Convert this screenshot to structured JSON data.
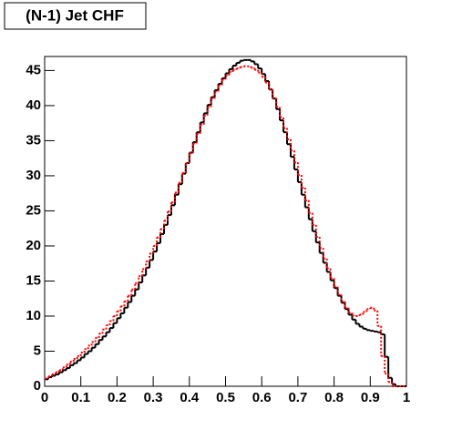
{
  "chart_data": {
    "type": "histogram",
    "title": "(N-1) Jet CHF",
    "bins": [
      0,
      0.01,
      0.02,
      0.03,
      0.04,
      0.05,
      0.06,
      0.07,
      0.08,
      0.09,
      0.1,
      0.11,
      0.12,
      0.13,
      0.14,
      0.15,
      0.16,
      0.17,
      0.18,
      0.19,
      0.2,
      0.21,
      0.22,
      0.23,
      0.24,
      0.25,
      0.26,
      0.27,
      0.28,
      0.29,
      0.3,
      0.31,
      0.32,
      0.33,
      0.34,
      0.35,
      0.36,
      0.37,
      0.38,
      0.39,
      0.4,
      0.41,
      0.42,
      0.43,
      0.44,
      0.45,
      0.46,
      0.47,
      0.48,
      0.49,
      0.5,
      0.51,
      0.52,
      0.53,
      0.54,
      0.55,
      0.56,
      0.57,
      0.58,
      0.59,
      0.6,
      0.61,
      0.62,
      0.63,
      0.64,
      0.65,
      0.66,
      0.67,
      0.68,
      0.69,
      0.7,
      0.71,
      0.72,
      0.73,
      0.74,
      0.75,
      0.76,
      0.77,
      0.78,
      0.79,
      0.8,
      0.81,
      0.82,
      0.83,
      0.84,
      0.85,
      0.86,
      0.87,
      0.88,
      0.89,
      0.9,
      0.91,
      0.92,
      0.93,
      0.94,
      0.95,
      0.96,
      0.97,
      0.98,
      0.99,
      1
    ],
    "series": [
      {
        "color": "#000000",
        "dash": "none",
        "values": [
          1.0,
          1.3,
          1.5,
          1.7,
          2.0,
          2.3,
          2.6,
          3.0,
          3.3,
          3.7,
          4.1,
          4.6,
          5.0,
          5.5,
          6.0,
          6.6,
          7.1,
          7.7,
          8.3,
          9.0,
          9.7,
          10.4,
          11.2,
          12.0,
          12.9,
          13.8,
          14.8,
          15.8,
          16.9,
          18.0,
          19.2,
          20.4,
          21.7,
          23.0,
          24.4,
          25.8,
          27.3,
          28.8,
          30.3,
          31.8,
          33.3,
          34.8,
          36.2,
          37.6,
          38.9,
          40.1,
          41.2,
          42.2,
          43.1,
          43.9,
          44.6,
          45.2,
          45.7,
          46.1,
          46.4,
          46.5,
          46.5,
          46.3,
          45.9,
          45.3,
          44.5,
          43.5,
          42.3,
          41.0,
          39.5,
          37.9,
          36.2,
          34.5,
          32.7,
          30.9,
          29.1,
          27.3,
          25.5,
          23.8,
          22.1,
          20.5,
          19.0,
          17.6,
          16.3,
          15.1,
          14.0,
          12.9,
          11.9,
          11.0,
          10.2,
          9.5,
          8.9,
          8.5,
          8.2,
          8.0,
          7.9,
          7.8,
          7.7,
          7.4,
          4.2,
          1.2,
          0.3,
          0,
          0,
          0
        ]
      },
      {
        "color": "#ff0000",
        "dash": "2 2",
        "values": [
          1.1,
          1.4,
          1.7,
          2.0,
          2.3,
          2.7,
          3.1,
          3.5,
          3.9,
          4.3,
          4.8,
          5.3,
          5.8,
          6.3,
          6.9,
          7.5,
          8.1,
          8.7,
          9.3,
          10.0,
          10.7,
          11.4,
          12.1,
          12.9,
          13.8,
          14.7,
          15.7,
          16.7,
          17.8,
          18.9,
          20.0,
          21.2,
          22.4,
          23.6,
          24.9,
          26.2,
          27.6,
          29.0,
          30.4,
          31.8,
          33.2,
          34.6,
          36.0,
          37.3,
          38.6,
          39.8,
          41.0,
          42.0,
          42.9,
          43.7,
          44.3,
          44.8,
          45.1,
          45.3,
          45.5,
          45.6,
          45.6,
          45.4,
          45.1,
          44.7,
          44.1,
          43.3,
          42.3,
          41.1,
          39.8,
          38.3,
          36.8,
          35.2,
          33.6,
          31.9,
          30.1,
          28.3,
          26.5,
          24.7,
          23.0,
          21.3,
          19.7,
          18.2,
          16.8,
          15.4,
          14.2,
          13.1,
          12.1,
          11.2,
          10.5,
          10.1,
          10.0,
          10.2,
          10.6,
          11.0,
          11.2,
          10.8,
          8.6,
          4.3,
          1.8,
          0.6,
          0,
          0,
          0,
          0
        ]
      }
    ],
    "xlim": [
      0,
      1
    ],
    "ylim": [
      0,
      47
    ],
    "xticks": [
      0,
      0.1,
      0.2,
      0.3,
      0.4,
      0.5,
      0.6,
      0.7,
      0.8,
      0.9,
      1
    ],
    "yticks": [
      0,
      5,
      10,
      15,
      20,
      25,
      30,
      35,
      40,
      45
    ]
  }
}
